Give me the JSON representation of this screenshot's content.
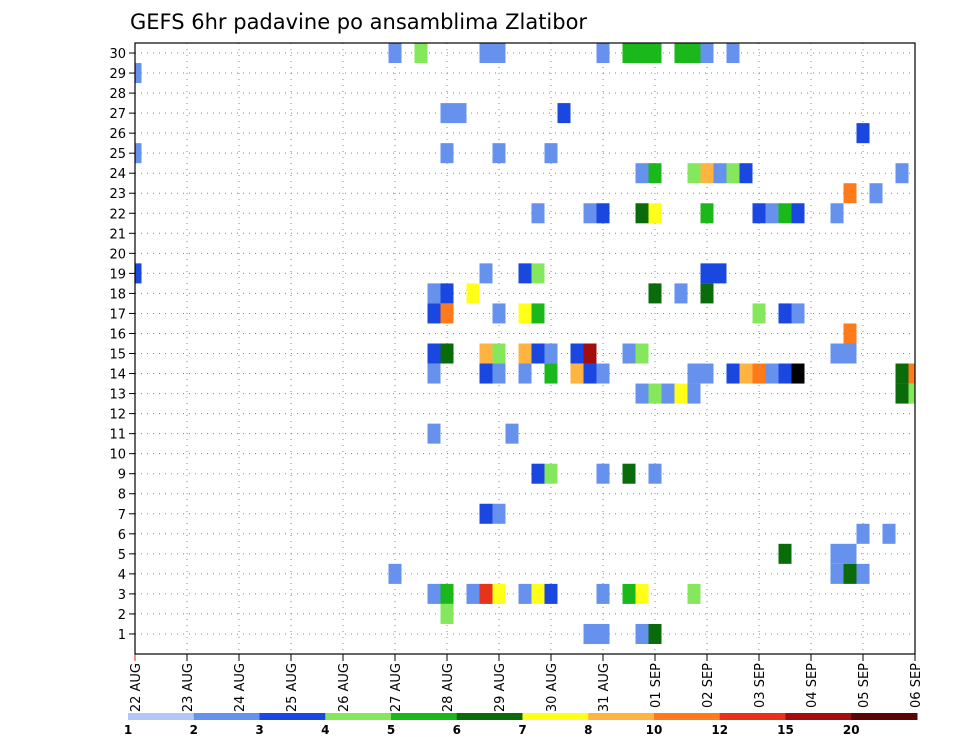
{
  "chart_data": {
    "type": "heatmap",
    "title": "GEFS 6hr padavine po ansamblima Zlatibor",
    "xlabel": "",
    "ylabel": "",
    "x_ticks": [
      "22 AUG",
      "23 AUG",
      "24 AUG",
      "25 AUG",
      "26 AUG",
      "27 AUG",
      "28 AUG",
      "29 AUG",
      "30 AUG",
      "31 AUG",
      "01 SEP",
      "02 SEP",
      "03 SEP",
      "04 SEP",
      "05 SEP",
      "06 SEP"
    ],
    "y_ticks": [
      "1",
      "2",
      "3",
      "4",
      "5",
      "6",
      "7",
      "8",
      "9",
      "10",
      "11",
      "12",
      "13",
      "14",
      "15",
      "16",
      "17",
      "18",
      "19",
      "20",
      "21",
      "22",
      "23",
      "24",
      "25",
      "26",
      "27",
      "28",
      "29",
      "30"
    ],
    "xlim_steps": [
      0,
      60
    ],
    "steps_per_day": 4,
    "ylim": [
      0,
      30
    ],
    "grid": true,
    "colorbar": {
      "labels": [
        "1",
        "2",
        "3",
        "4",
        "5",
        "6",
        "7",
        "8",
        "10",
        "12",
        "15",
        "20"
      ],
      "colors": [
        "#b3c7f7",
        "#6692ee",
        "#1a47e0",
        "#85e85c",
        "#1ab81a",
        "#0a6b0a",
        "#ffff1a",
        "#ffb340",
        "#ff7a1a",
        "#e6331a",
        "#a30d0d",
        "#5c0505"
      ]
    },
    "cells": [
      [
        20,
        30,
        1
      ],
      [
        22,
        30,
        3
      ],
      [
        27,
        30,
        1
      ],
      [
        28,
        30,
        1
      ],
      [
        36,
        30,
        1
      ],
      [
        38,
        30,
        4
      ],
      [
        39,
        30,
        4
      ],
      [
        40,
        30,
        4
      ],
      [
        42,
        30,
        4
      ],
      [
        43,
        30,
        4
      ],
      [
        44,
        30,
        1
      ],
      [
        46,
        30,
        1
      ],
      [
        0,
        29,
        1
      ],
      [
        24,
        27,
        1
      ],
      [
        25,
        27,
        1
      ],
      [
        33,
        27,
        2
      ],
      [
        56,
        26,
        2
      ],
      [
        0,
        25,
        1
      ],
      [
        24,
        25,
        1
      ],
      [
        28,
        25,
        1
      ],
      [
        32,
        25,
        1
      ],
      [
        39,
        24,
        1
      ],
      [
        40,
        24,
        4
      ],
      [
        43,
        24,
        3
      ],
      [
        44,
        24,
        7
      ],
      [
        45,
        24,
        1
      ],
      [
        46,
        24,
        3
      ],
      [
        47,
        24,
        2
      ],
      [
        59,
        24,
        1
      ],
      [
        55,
        23,
        8
      ],
      [
        57,
        23,
        1
      ],
      [
        31,
        22,
        1
      ],
      [
        35,
        22,
        1
      ],
      [
        36,
        22,
        2
      ],
      [
        39,
        22,
        5
      ],
      [
        40,
        22,
        6
      ],
      [
        44,
        22,
        4
      ],
      [
        48,
        22,
        2
      ],
      [
        49,
        22,
        1
      ],
      [
        50,
        22,
        4
      ],
      [
        51,
        22,
        2
      ],
      [
        54,
        22,
        1
      ],
      [
        0,
        19,
        2
      ],
      [
        27,
        19,
        1
      ],
      [
        30,
        19,
        2
      ],
      [
        31,
        19,
        3
      ],
      [
        44,
        19,
        2
      ],
      [
        45,
        19,
        2
      ],
      [
        23,
        18,
        1
      ],
      [
        24,
        18,
        2
      ],
      [
        26,
        18,
        6
      ],
      [
        40,
        18,
        5
      ],
      [
        42,
        18,
        1
      ],
      [
        44,
        18,
        5
      ],
      [
        23,
        17,
        2
      ],
      [
        24,
        17,
        8
      ],
      [
        28,
        17,
        1
      ],
      [
        30,
        17,
        6
      ],
      [
        31,
        17,
        4
      ],
      [
        48,
        17,
        3
      ],
      [
        50,
        17,
        2
      ],
      [
        51,
        17,
        1
      ],
      [
        55,
        16,
        8
      ],
      [
        23,
        15,
        2
      ],
      [
        24,
        15,
        5
      ],
      [
        27,
        15,
        7
      ],
      [
        28,
        15,
        3
      ],
      [
        30,
        15,
        7
      ],
      [
        31,
        15,
        2
      ],
      [
        32,
        15,
        1
      ],
      [
        34,
        15,
        2
      ],
      [
        35,
        15,
        10
      ],
      [
        38,
        15,
        1
      ],
      [
        39,
        15,
        3
      ],
      [
        54,
        15,
        1
      ],
      [
        55,
        15,
        1
      ],
      [
        23,
        14,
        1
      ],
      [
        27,
        14,
        2
      ],
      [
        28,
        14,
        1
      ],
      [
        30,
        14,
        1
      ],
      [
        32,
        14,
        4
      ],
      [
        34,
        14,
        7
      ],
      [
        35,
        14,
        2
      ],
      [
        36,
        14,
        1
      ],
      [
        43,
        14,
        1
      ],
      [
        44,
        14,
        1
      ],
      [
        46,
        14,
        2
      ],
      [
        47,
        14,
        7
      ],
      [
        48,
        14,
        8
      ],
      [
        49,
        14,
        1
      ],
      [
        50,
        14,
        2
      ],
      [
        51,
        14,
        12
      ],
      [
        59,
        14,
        5
      ],
      [
        60,
        14,
        8
      ],
      [
        39,
        13,
        1
      ],
      [
        40,
        13,
        3
      ],
      [
        41,
        13,
        1
      ],
      [
        42,
        13,
        6
      ],
      [
        43,
        13,
        1
      ],
      [
        59,
        13,
        5
      ],
      [
        60,
        13,
        3
      ],
      [
        23,
        11,
        1
      ],
      [
        29,
        11,
        1
      ],
      [
        31,
        9,
        2
      ],
      [
        32,
        9,
        3
      ],
      [
        36,
        9,
        1
      ],
      [
        38,
        9,
        5
      ],
      [
        40,
        9,
        1
      ],
      [
        27,
        7,
        2
      ],
      [
        28,
        7,
        1
      ],
      [
        56,
        6,
        1
      ],
      [
        58,
        6,
        1
      ],
      [
        50,
        5,
        5
      ],
      [
        54,
        5,
        1
      ],
      [
        55,
        5,
        1
      ],
      [
        20,
        4,
        1
      ],
      [
        54,
        4,
        1
      ],
      [
        55,
        4,
        5
      ],
      [
        56,
        4,
        1
      ],
      [
        23,
        3,
        1
      ],
      [
        24,
        3,
        4
      ],
      [
        26,
        3,
        1
      ],
      [
        27,
        3,
        9
      ],
      [
        28,
        3,
        6
      ],
      [
        30,
        3,
        1
      ],
      [
        31,
        3,
        6
      ],
      [
        32,
        3,
        2
      ],
      [
        36,
        3,
        1
      ],
      [
        38,
        3,
        4
      ],
      [
        39,
        3,
        6
      ],
      [
        43,
        3,
        3
      ],
      [
        24,
        2,
        3
      ],
      [
        35,
        1,
        1
      ],
      [
        36,
        1,
        1
      ],
      [
        39,
        1,
        1
      ],
      [
        40,
        1,
        5
      ]
    ]
  }
}
